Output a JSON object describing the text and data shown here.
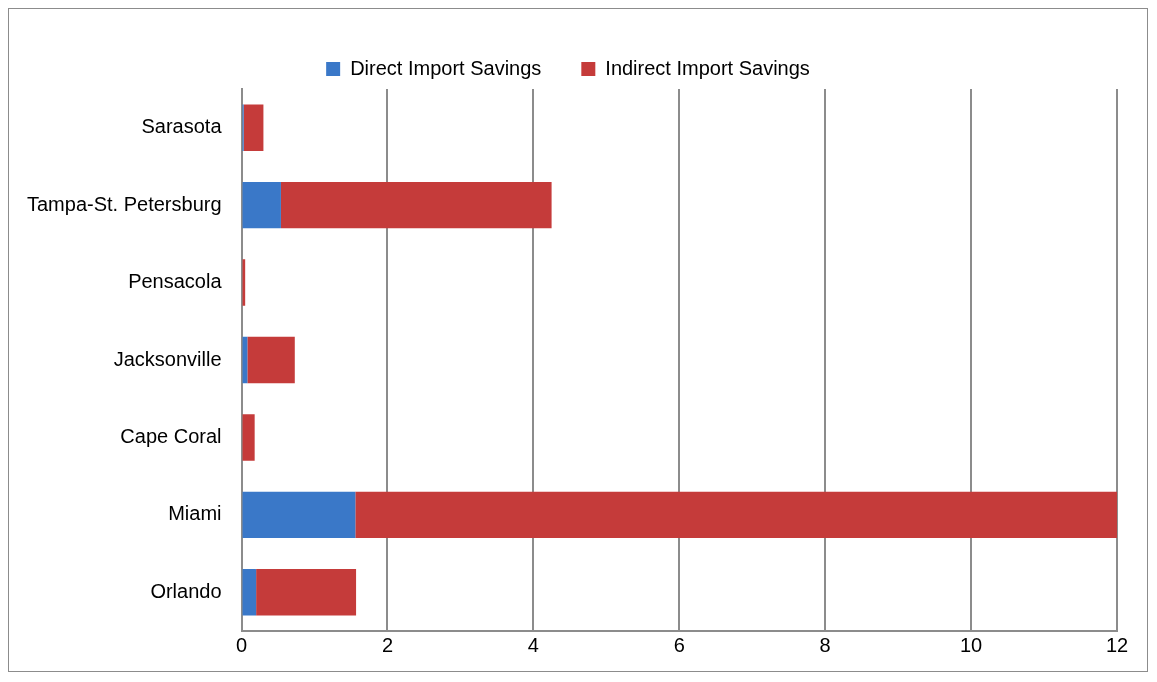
{
  "chart_data": {
    "type": "bar",
    "orientation": "horizontal",
    "stacked": true,
    "categories": [
      "Sarasota",
      "Tampa-St. Petersburg",
      "Pensacola",
      "Jacksonville",
      "Cape Coral",
      "Miami",
      "Orlando"
    ],
    "series": [
      {
        "name": "Direct Import Savings",
        "color": "#3a78c8",
        "values": [
          0.03,
          0.54,
          0,
          0.08,
          0,
          1.56,
          0.2
        ]
      },
      {
        "name": "Indirect Import Savings",
        "color": "#c53b3a",
        "values": [
          0.27,
          3.71,
          0.05,
          0.65,
          0.18,
          10.44,
          1.37
        ]
      }
    ],
    "xlim": [
      0,
      12
    ],
    "xticks": [
      0,
      2,
      4,
      6,
      8,
      10,
      12
    ],
    "grid": "x",
    "legend": "top"
  }
}
